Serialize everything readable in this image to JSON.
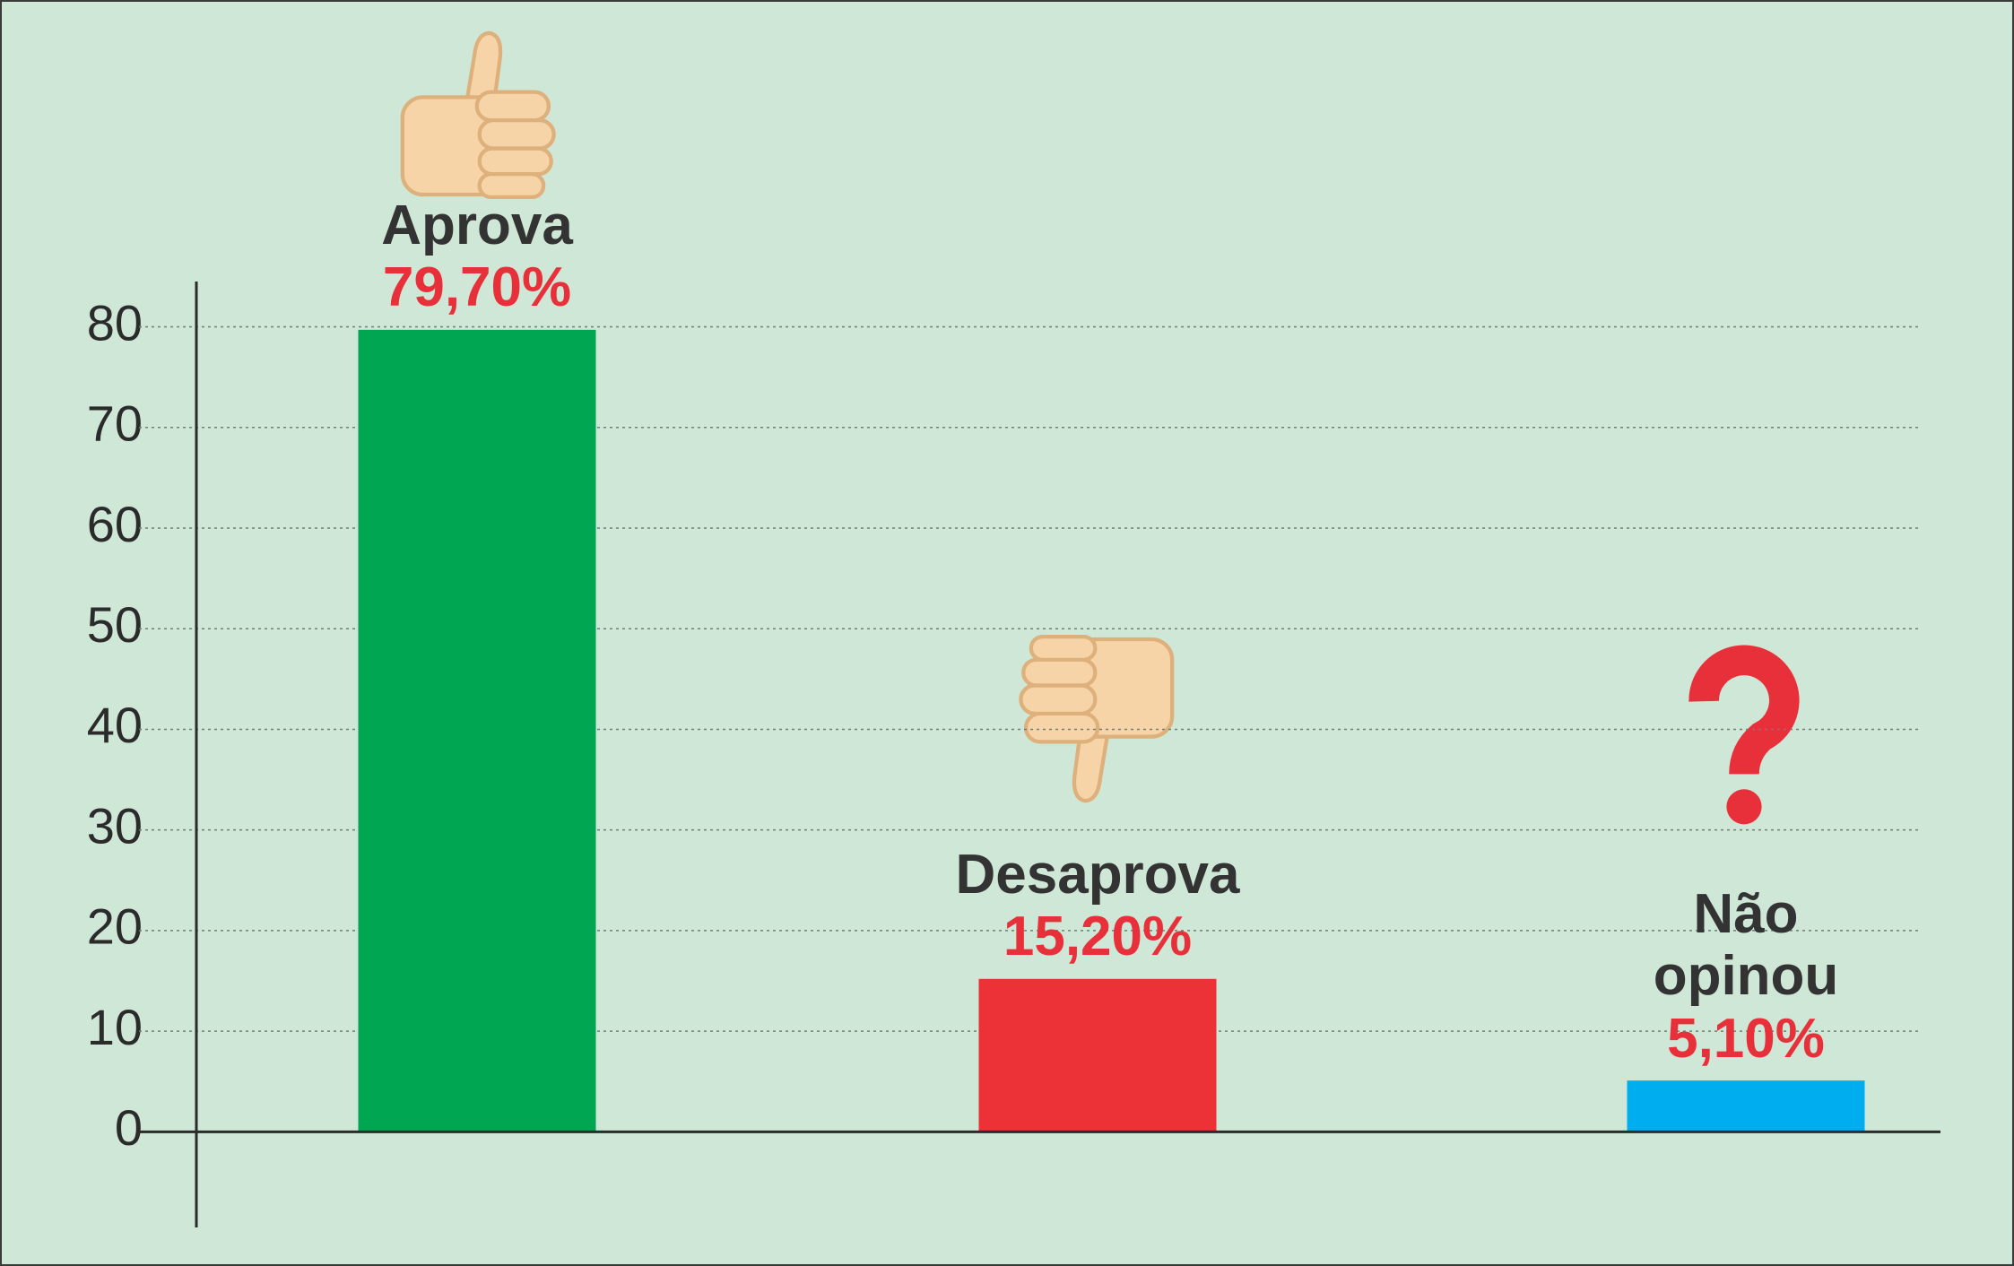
{
  "chart_data": {
    "type": "bar",
    "categories": [
      "Aprova",
      "Desaprova",
      "Não opinou"
    ],
    "values": [
      79.7,
      15.2,
      5.1
    ],
    "value_labels": [
      "79,70%",
      "15,20%",
      "5,10%"
    ],
    "colors": [
      "#00a651",
      "#ed3237",
      "#00aeef"
    ],
    "ylim": [
      -9.5,
      84.5
    ],
    "yticks": [
      0,
      10,
      20,
      30,
      40,
      50,
      60,
      70,
      80
    ],
    "grid": true
  }
}
